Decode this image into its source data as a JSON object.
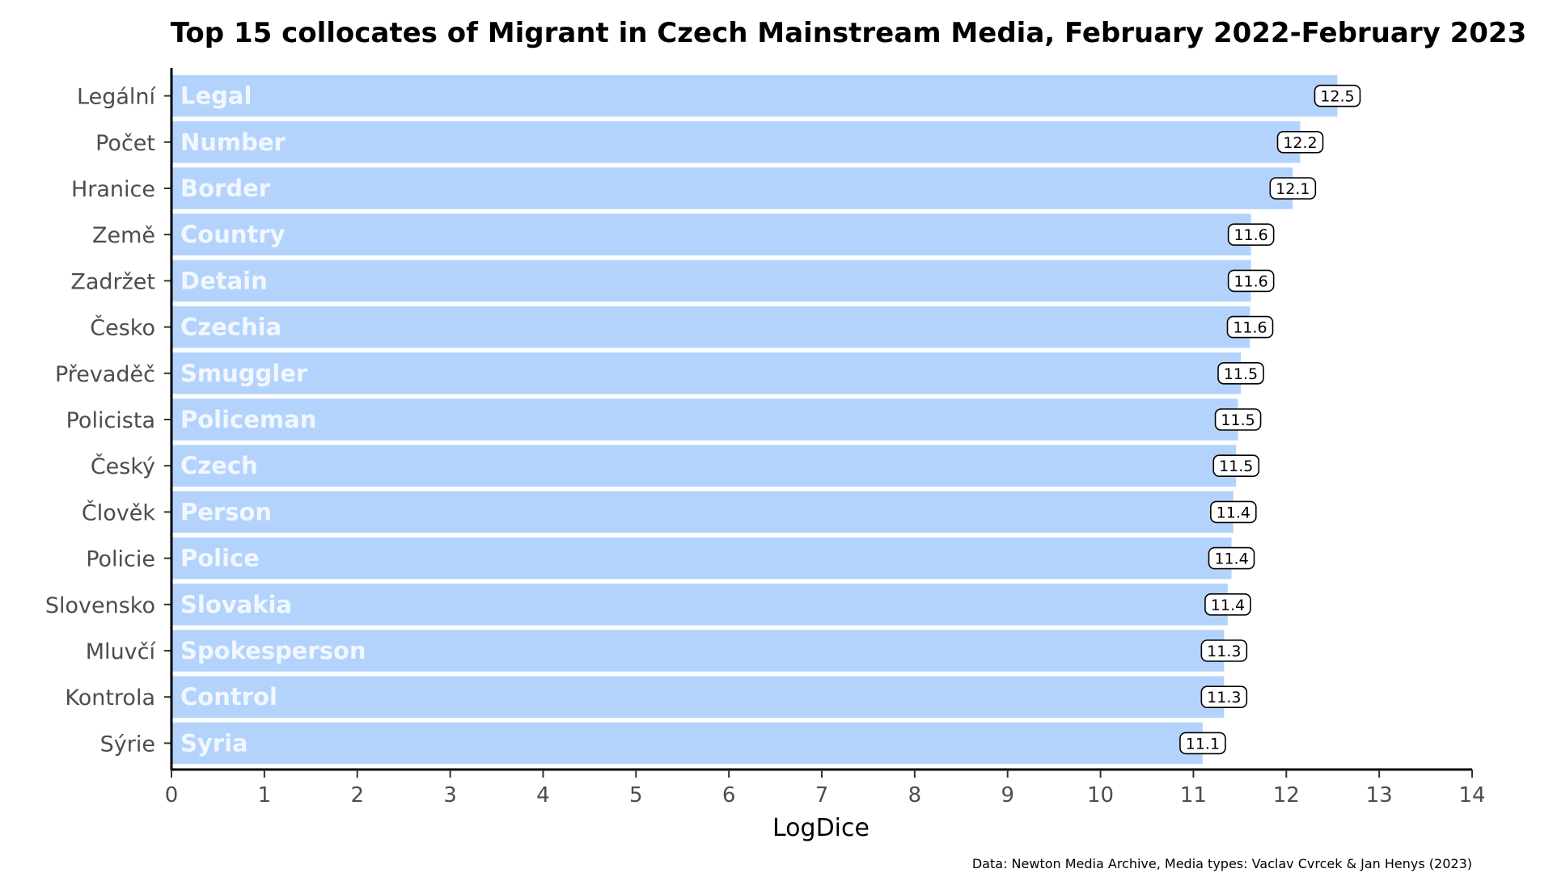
{
  "chart_data": {
    "type": "bar",
    "orientation": "horizontal",
    "title": "Top 15 collocates of Migrant in Czech Mainstream Media, February 2022-February 2023",
    "xlabel": "LogDice",
    "ylabel": "",
    "caption": "Data: Newton Media Archive, Media types: Vaclav Cvrcek & Jan Henys (2023)",
    "xlim": [
      0,
      14
    ],
    "xticks": [
      0,
      1,
      2,
      3,
      4,
      5,
      6,
      7,
      8,
      9,
      10,
      11,
      12,
      13,
      14
    ],
    "grid": false,
    "legend": "none",
    "bar_color": "#b3d3fd",
    "bar_text_color": "#f2f7ff",
    "categories": [
      "Legální",
      "Počet",
      "Hranice",
      "Země",
      "Zadržet",
      "Česko",
      "Převaděč",
      "Policista",
      "Český",
      "Člověk",
      "Policie",
      "Slovensko",
      "Mluvčí",
      "Kontrola",
      "Sýrie"
    ],
    "translations": [
      "Legal",
      "Number",
      "Border",
      "Country",
      "Detain",
      "Czechia",
      "Smuggler",
      "Policeman",
      "Czech",
      "Person",
      "Police",
      "Slovakia",
      "Spokesperson",
      "Control",
      "Syria"
    ],
    "values": [
      12.55,
      12.15,
      12.07,
      11.62,
      11.62,
      11.61,
      11.51,
      11.48,
      11.46,
      11.43,
      11.41,
      11.37,
      11.33,
      11.33,
      11.1
    ],
    "value_labels": [
      "12.5",
      "12.2",
      "12.1",
      "11.6",
      "11.6",
      "11.6",
      "11.5",
      "11.5",
      "11.5",
      "11.4",
      "11.4",
      "11.4",
      "11.3",
      "11.3",
      "11.1"
    ]
  }
}
